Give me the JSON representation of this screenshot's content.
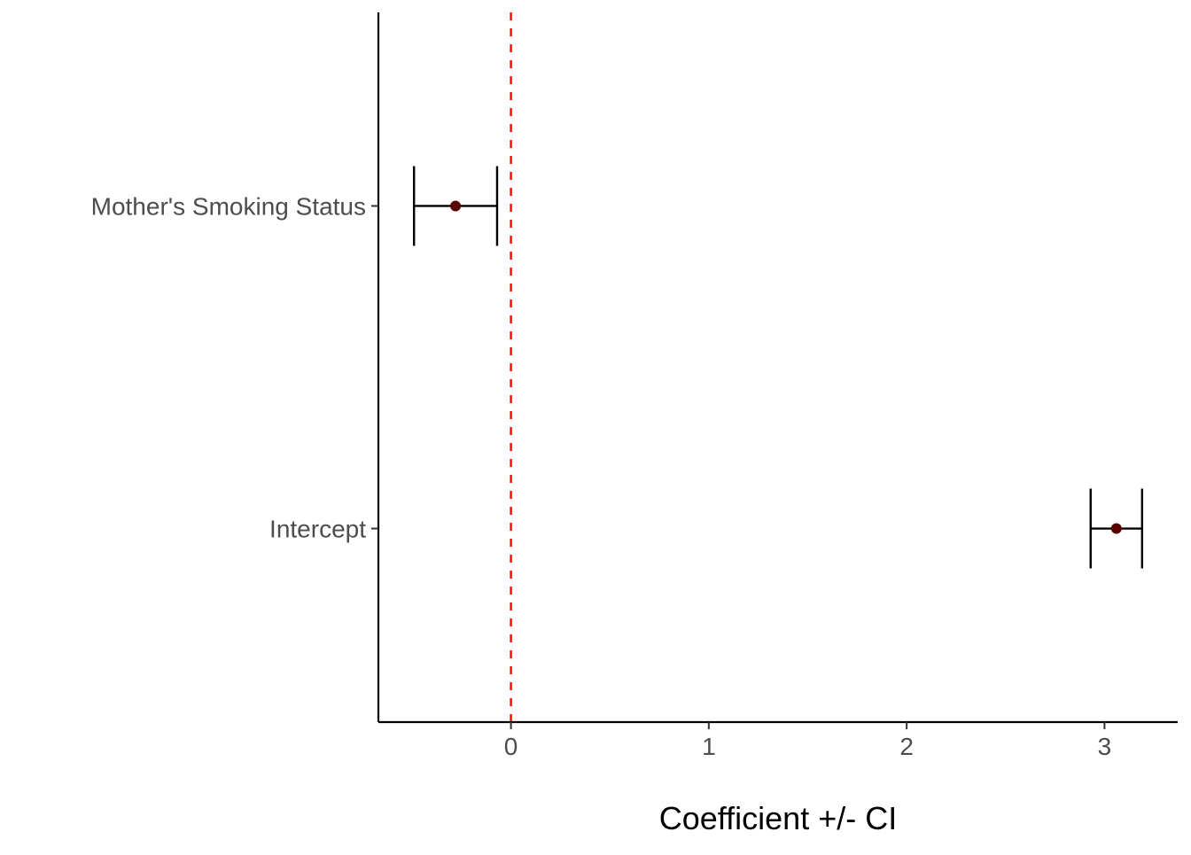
{
  "chart_data": {
    "type": "coefficient-plot",
    "title": "",
    "xlabel": "Coefficient +/- CI",
    "ylabel": "",
    "xlim": [
      -0.67,
      3.37
    ],
    "x_ticks": [
      0,
      1,
      2,
      3
    ],
    "grid": false,
    "legend": "none",
    "reference_line": {
      "x": 0,
      "style": "dashed",
      "color": "#ff0000"
    },
    "categories": [
      "Mother's Smoking Status",
      "Intercept"
    ],
    "points": [
      {
        "label": "Mother's Smoking Status",
        "estimate": -0.28,
        "ci_low": -0.49,
        "ci_high": -0.07
      },
      {
        "label": "Intercept",
        "estimate": 3.06,
        "ci_low": 2.93,
        "ci_high": 3.19
      }
    ],
    "colors": {
      "point": "#5a0000",
      "errorbar": "#000000",
      "axis": "#000000",
      "tick_label": "#4d4d4d"
    }
  }
}
